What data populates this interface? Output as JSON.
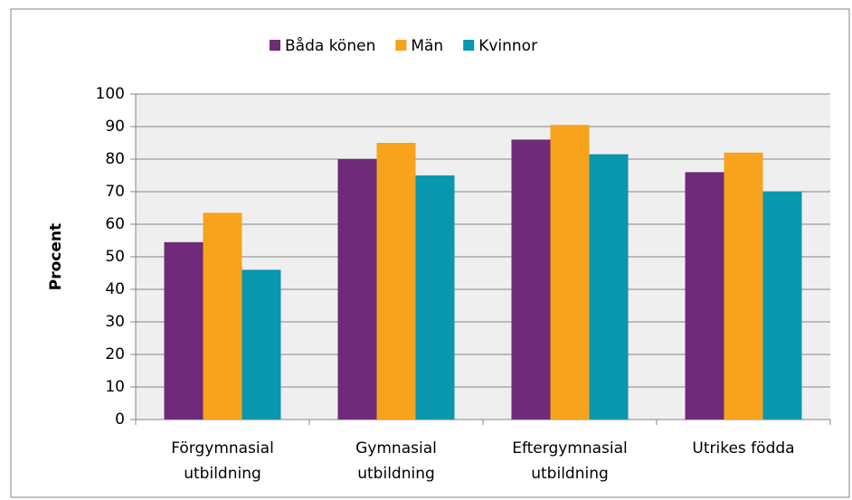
{
  "chart_data": {
    "type": "bar",
    "y_label": "Procent",
    "categories": [
      "Förgymnasial\nutbildning",
      "Gymnasial\nutbildning",
      "Eftergymnasial\nutbildning",
      "Utrikes födda"
    ],
    "series": [
      {
        "name": "Båda könen",
        "color": "#702a7a",
        "values": [
          54.5,
          80,
          86,
          76
        ]
      },
      {
        "name": "Män",
        "color": "#f7a31b",
        "values": [
          63.5,
          85,
          90.5,
          82
        ]
      },
      {
        "name": "Kvinnor",
        "color": "#0897ae",
        "values": [
          46,
          75,
          81.5,
          70
        ]
      }
    ],
    "ylim": [
      0,
      100
    ],
    "yticks": [
      0,
      10,
      20,
      30,
      40,
      50,
      60,
      70,
      80,
      90,
      100
    ],
    "grid": true,
    "legend": "top"
  }
}
